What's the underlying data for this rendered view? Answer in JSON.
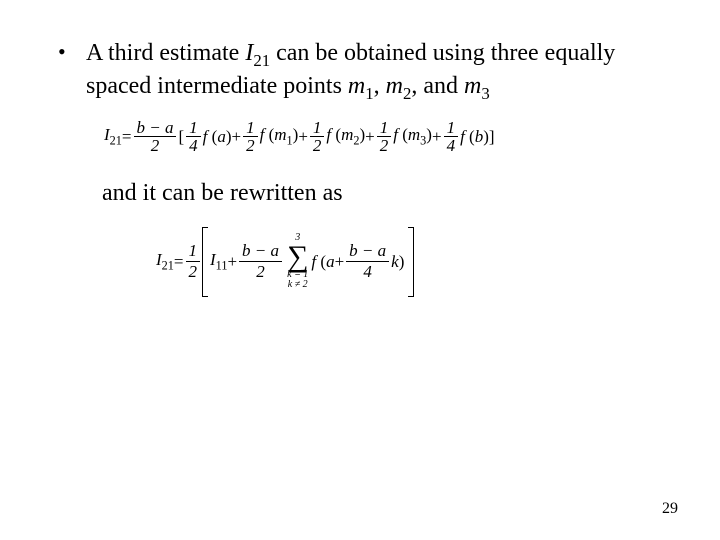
{
  "bullet": {
    "text_a": "A third estimate ",
    "var_I": "I",
    "sub_21": "21",
    "text_b": " can be obtained using three equally spaced intermediate points ",
    "var_m": "m",
    "s1": "1",
    "s2": "2",
    "s3": "3",
    "comma": ", ",
    "and": ", and "
  },
  "eq1": {
    "I": "I",
    "sub21": "21",
    "eq": " = ",
    "ba_num": "b − a",
    "two": "2",
    "lb": "[",
    "one": "1",
    "four": "4",
    "f": " f ",
    "lp": "(",
    "rp": ")",
    "a": "a",
    "b": "b",
    "plus": " + ",
    "m": "m",
    "m1": "1",
    "m2": "2",
    "m3": "3",
    "rb": "]"
  },
  "after": "and it can be rewritten as",
  "eq2": {
    "I": "I",
    "sub21": "21",
    "sub11": "11",
    "eq": " = ",
    "one": "1",
    "two": "2",
    "plus": " + ",
    "ba": "b − a",
    "upper": "3",
    "lower1": "k = 1",
    "lower2": "k ≠ 2",
    "f": " f ",
    "lp": "(",
    "a": "a",
    "four": "4",
    "k": " k",
    "rp": ")"
  },
  "page": "29"
}
